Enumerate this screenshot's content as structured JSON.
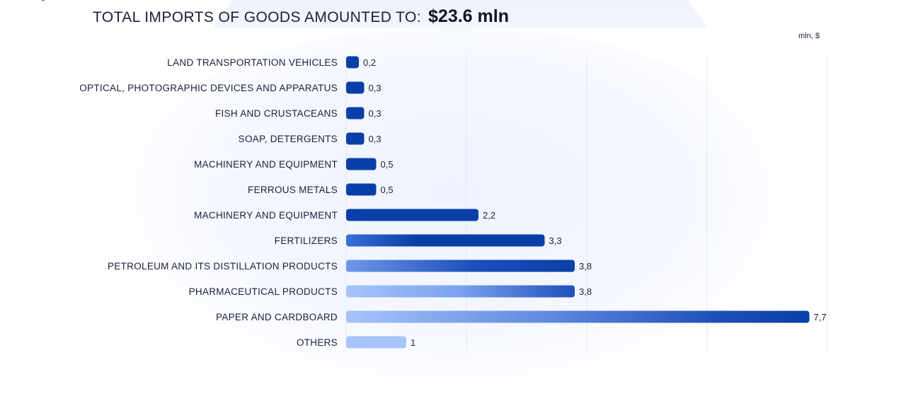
{
  "header": {
    "title": "TOTAL IMPORTS OF GOODS AMOUNTED TO:",
    "total": "$23.6 mln"
  },
  "unit": "mln, $",
  "chart_data": {
    "type": "bar",
    "orientation": "horizontal",
    "title": "TOTAL IMPORTS OF GOODS AMOUNTED TO: $23.6 mln",
    "unit": "mln, $",
    "xlim": [
      0,
      8
    ],
    "grid": true,
    "categories": [
      "LAND TRANSPORTATION VEHICLES",
      "OPTICAL, PHOTOGRAPHIC DEVICES AND APPARATUS",
      "FISH AND CRUSTACEANS",
      "SOAP, DETERGENTS",
      "MACHINERY AND EQUIPMENT",
      "FERROUS METALS",
      "MACHINERY AND EQUIPMENT",
      "FERTILIZERS",
      "PETROLEUM AND ITS DISTILLATION PRODUCTS",
      "PHARMACEUTICAL PRODUCTS",
      "PAPER AND CARDBOARD",
      "OTHERS"
    ],
    "values": [
      0.2,
      0.3,
      0.3,
      0.3,
      0.5,
      0.5,
      2.2,
      3.3,
      3.8,
      3.8,
      7.7,
      1
    ],
    "value_labels": [
      "0,2",
      "0,3",
      "0,3",
      "0,3",
      "0,5",
      "0,5",
      "2,2",
      "3,3",
      "3,8",
      "3,8",
      "7,7",
      "1"
    ],
    "bar_styles": [
      "solid",
      "solid",
      "solid",
      "solid",
      "solid",
      "solid",
      "solid",
      "fade-left",
      "fade-left-more",
      "fade-light",
      "light-to-dark",
      "light"
    ],
    "colors": {
      "dark": "#0a3fa8",
      "mid": "#3a6fd8",
      "light": "#a7c4fb",
      "grid": "#e3e8f2",
      "text": "#1b1f3a"
    }
  }
}
